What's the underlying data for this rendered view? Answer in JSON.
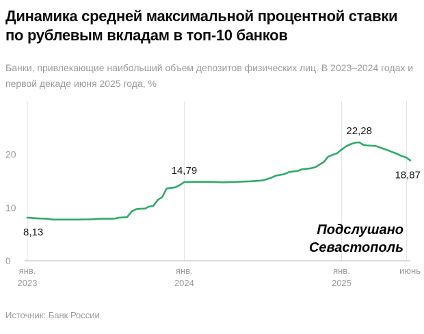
{
  "chart_data": {
    "type": "line",
    "title": "Динамика средней максимальной процентной ставки по рублевым вкладам в топ-10 банков",
    "subtitle": "Банки, привлекающие наибольший объем депозитов физических лиц. В 2023–2024 годах и первой декаде июня 2025 года, %",
    "source": "Источник: Банк России",
    "ylim": [
      0,
      30
    ],
    "yticks": [
      {
        "value": 0,
        "label": "0"
      },
      {
        "value": 10,
        "label": "10"
      },
      {
        "value": 20,
        "label": "20"
      }
    ],
    "xlim": [
      "2023-01-01",
      "2025-06-10"
    ],
    "xticks": [
      {
        "date": "2023-01-01",
        "label1": "янв.",
        "label2": "2023"
      },
      {
        "date": "2024-01-01",
        "label1": "янв.",
        "label2": "2024"
      },
      {
        "date": "2025-01-01",
        "label1": "янв.",
        "label2": "2025"
      },
      {
        "date": "2025-06-01",
        "label1": "июнь",
        "label2": ""
      }
    ],
    "grid": "vertical",
    "line_color": "#2eaa6a",
    "series": [
      {
        "points": [
          [
            "2023-01-01",
            8.13
          ],
          [
            "2023-01-21",
            8.0
          ],
          [
            "2023-02-01",
            7.95
          ],
          [
            "2023-02-15",
            7.9
          ],
          [
            "2023-03-01",
            7.75
          ],
          [
            "2023-04-01",
            7.75
          ],
          [
            "2023-05-01",
            7.75
          ],
          [
            "2023-06-01",
            7.8
          ],
          [
            "2023-06-21",
            7.9
          ],
          [
            "2023-07-21",
            7.9
          ],
          [
            "2023-08-01",
            8.1
          ],
          [
            "2023-08-21",
            8.2
          ],
          [
            "2023-09-01",
            9.3
          ],
          [
            "2023-09-11",
            9.7
          ],
          [
            "2023-09-21",
            9.8
          ],
          [
            "2023-10-01",
            9.8
          ],
          [
            "2023-10-11",
            10.2
          ],
          [
            "2023-10-21",
            10.3
          ],
          [
            "2023-11-01",
            11.5
          ],
          [
            "2023-11-11",
            12.0
          ],
          [
            "2023-11-21",
            13.6
          ],
          [
            "2023-12-01",
            13.7
          ],
          [
            "2023-12-11",
            13.8
          ],
          [
            "2023-12-21",
            14.2
          ],
          [
            "2024-01-01",
            14.79
          ],
          [
            "2024-02-01",
            14.85
          ],
          [
            "2024-03-01",
            14.85
          ],
          [
            "2024-04-01",
            14.75
          ],
          [
            "2024-05-01",
            14.85
          ],
          [
            "2024-06-01",
            14.95
          ],
          [
            "2024-07-01",
            15.1
          ],
          [
            "2024-07-21",
            15.6
          ],
          [
            "2024-08-01",
            16.0
          ],
          [
            "2024-08-21",
            16.3
          ],
          [
            "2024-09-01",
            16.7
          ],
          [
            "2024-09-21",
            16.9
          ],
          [
            "2024-10-01",
            17.2
          ],
          [
            "2024-10-21",
            17.4
          ],
          [
            "2024-11-01",
            17.6
          ],
          [
            "2024-11-11",
            18.1
          ],
          [
            "2024-11-21",
            18.6
          ],
          [
            "2024-12-01",
            19.6
          ],
          [
            "2024-12-11",
            19.9
          ],
          [
            "2024-12-21",
            20.2
          ],
          [
            "2025-01-01",
            20.9
          ],
          [
            "2025-01-11",
            21.5
          ],
          [
            "2025-01-21",
            21.9
          ],
          [
            "2025-02-01",
            22.2
          ],
          [
            "2025-02-11",
            22.28
          ],
          [
            "2025-02-21",
            21.8
          ],
          [
            "2025-03-01",
            21.7
          ],
          [
            "2025-03-21",
            21.6
          ],
          [
            "2025-04-01",
            21.3
          ],
          [
            "2025-04-11",
            21.0
          ],
          [
            "2025-04-21",
            20.7
          ],
          [
            "2025-05-01",
            20.4
          ],
          [
            "2025-05-11",
            20.1
          ],
          [
            "2025-05-21",
            19.7
          ],
          [
            "2025-06-01",
            19.4
          ],
          [
            "2025-06-10",
            18.87
          ]
        ]
      }
    ],
    "annotations": [
      {
        "text": "8,13",
        "date": "2023-01-01",
        "value": 8.13,
        "place": "below"
      },
      {
        "text": "14,79",
        "date": "2024-01-01",
        "value": 14.79,
        "place": "above"
      },
      {
        "text": "22,28",
        "date": "2025-02-11",
        "value": 22.28,
        "place": "above"
      },
      {
        "text": "18,87",
        "date": "2025-06-10",
        "value": 18.87,
        "place": "below"
      }
    ],
    "watermark": [
      "Подслушано",
      "Севастополь"
    ]
  }
}
